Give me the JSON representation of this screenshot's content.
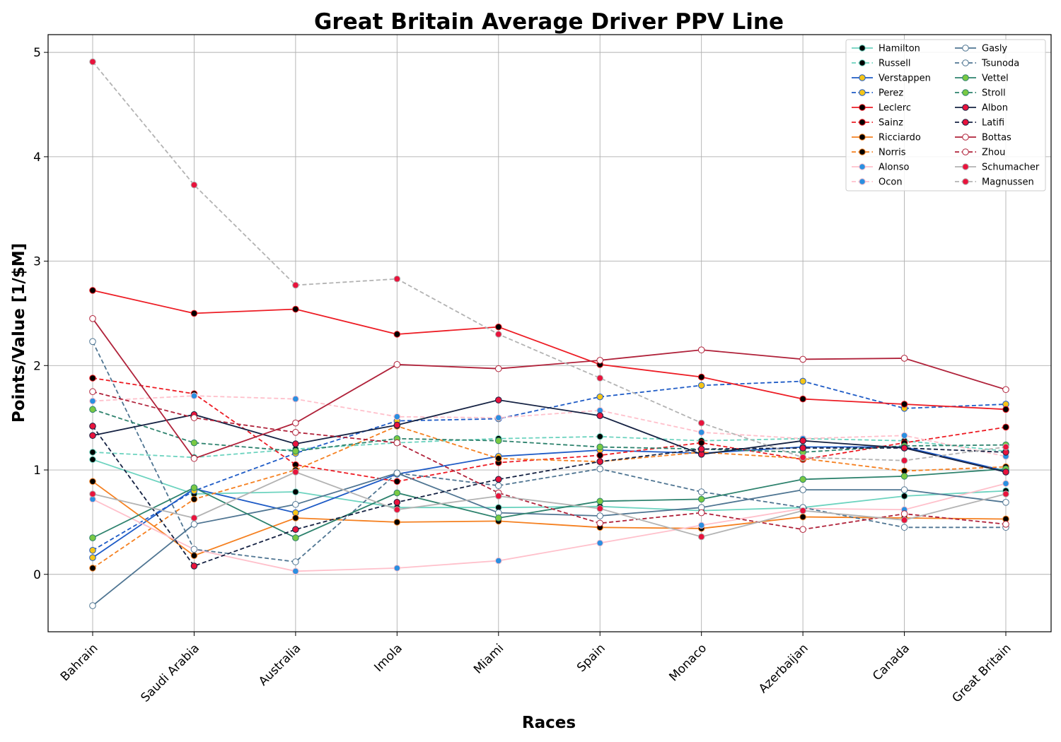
{
  "chart_data": {
    "type": "line",
    "title": "Great Britain Average Driver PPV Line",
    "xlabel": "Races",
    "ylabel": "Points/Value [1/$M]",
    "categories": [
      "Bahrain",
      "Saudi Arabia",
      "Australia",
      "Imola",
      "Miami",
      "Spain",
      "Monaco",
      "Azerbaijan",
      "Canada",
      "Great Britain"
    ],
    "yticks": [
      "0",
      "1",
      "2",
      "3",
      "4",
      "5"
    ],
    "ylim": [
      -0.55,
      5.17
    ],
    "grid": true,
    "legend_position": "top-right",
    "legend_columns": 2,
    "series": [
      {
        "name": "Hamilton",
        "color": "#6cd3bf",
        "line_style": "solid",
        "marker_face": "#000000",
        "values": [
          1.1,
          0.77,
          0.79,
          0.64,
          0.64,
          0.65,
          0.61,
          0.64,
          0.75,
          0.8
        ]
      },
      {
        "name": "Russell",
        "color": "#6cd3bf",
        "line_style": "dashed",
        "marker_face": "#000000",
        "values": [
          1.17,
          1.12,
          1.2,
          1.26,
          1.3,
          1.32,
          1.28,
          1.3,
          1.28,
          1.18
        ]
      },
      {
        "name": "Verstappen",
        "color": "#1e5bc6",
        "line_style": "solid",
        "marker_face": "#f5c518",
        "values": [
          0.16,
          0.82,
          0.59,
          0.96,
          1.13,
          1.19,
          1.16,
          1.22,
          1.22,
          0.99
        ]
      },
      {
        "name": "Perez",
        "color": "#1e5bc6",
        "line_style": "dashed",
        "marker_face": "#f5c518",
        "values": [
          0.23,
          0.8,
          1.16,
          1.47,
          1.49,
          1.7,
          1.81,
          1.85,
          1.59,
          1.63
        ]
      },
      {
        "name": "Leclerc",
        "color": "#ed1c24",
        "line_style": "solid",
        "marker_face": "#000000",
        "values": [
          2.72,
          2.5,
          2.54,
          2.3,
          2.37,
          2.01,
          1.89,
          1.68,
          1.63,
          1.58
        ]
      },
      {
        "name": "Sainz",
        "color": "#ed1c24",
        "line_style": "dashed",
        "marker_face": "#000000",
        "values": [
          1.88,
          1.73,
          1.05,
          0.89,
          1.07,
          1.14,
          1.26,
          1.1,
          1.26,
          1.41
        ]
      },
      {
        "name": "Ricciardo",
        "color": "#f58020",
        "line_style": "solid",
        "marker_face": "#000000",
        "values": [
          0.89,
          0.18,
          0.54,
          0.5,
          0.51,
          0.45,
          0.44,
          0.55,
          0.54,
          0.53
        ]
      },
      {
        "name": "Norris",
        "color": "#f58020",
        "line_style": "dashed",
        "marker_face": "#000000",
        "values": [
          0.06,
          0.72,
          1.0,
          1.42,
          1.11,
          1.08,
          1.17,
          1.11,
          0.99,
          1.03
        ]
      },
      {
        "name": "Alonso",
        "color": "#ffc0cb",
        "line_style": "solid",
        "marker_face": "#2b8fe0",
        "values": [
          0.72,
          0.24,
          0.03,
          0.06,
          0.13,
          0.3,
          0.47,
          0.63,
          0.62,
          0.87
        ]
      },
      {
        "name": "Ocon",
        "color": "#ffc0cb",
        "line_style": "dashed",
        "marker_face": "#2b8fe0",
        "values": [
          1.66,
          1.71,
          1.68,
          1.51,
          1.5,
          1.57,
          1.36,
          1.3,
          1.33,
          1.13
        ]
      },
      {
        "name": "Gasly",
        "color": "#4f7592",
        "line_style": "solid",
        "marker_face": "#ffffff",
        "values": [
          -0.3,
          0.48,
          0.67,
          0.97,
          0.59,
          0.56,
          0.64,
          0.81,
          0.81,
          0.69
        ]
      },
      {
        "name": "Tsunoda",
        "color": "#4f7592",
        "line_style": "dashed",
        "marker_face": "#ffffff",
        "values": [
          2.23,
          0.24,
          0.12,
          0.97,
          0.85,
          1.01,
          0.79,
          0.64,
          0.45,
          0.45
        ]
      },
      {
        "name": "Vettel",
        "color": "#2d826d",
        "line_style": "solid",
        "marker_face": "#7ac943",
        "values": [
          0.35,
          0.83,
          0.35,
          0.78,
          0.54,
          0.7,
          0.72,
          0.91,
          0.94,
          1.01
        ]
      },
      {
        "name": "Stroll",
        "color": "#2d826d",
        "line_style": "dashed",
        "marker_face": "#7ac943",
        "values": [
          1.58,
          1.26,
          1.18,
          1.3,
          1.28,
          1.22,
          1.2,
          1.17,
          1.23,
          1.24
        ]
      },
      {
        "name": "Albon",
        "color": "#152243",
        "line_style": "solid",
        "marker_face": "#e8133c",
        "values": [
          1.33,
          1.53,
          1.25,
          1.43,
          1.67,
          1.52,
          1.15,
          1.28,
          1.21,
          0.98
        ]
      },
      {
        "name": "Latifi",
        "color": "#152243",
        "line_style": "dashed",
        "marker_face": "#e8133c",
        "values": [
          1.42,
          0.08,
          0.43,
          0.69,
          0.91,
          1.08,
          1.2,
          1.21,
          1.21,
          1.17
        ]
      },
      {
        "name": "Bottas",
        "color": "#b0223a",
        "line_style": "solid",
        "marker_face": "#ffffff",
        "values": [
          2.45,
          1.11,
          1.45,
          2.01,
          1.97,
          2.05,
          2.15,
          2.06,
          2.07,
          1.77
        ]
      },
      {
        "name": "Zhou",
        "color": "#b0223a",
        "line_style": "dashed",
        "marker_face": "#ffffff",
        "values": [
          1.75,
          1.5,
          1.36,
          1.26,
          0.78,
          0.49,
          0.59,
          0.43,
          0.58,
          0.48
        ]
      },
      {
        "name": "Schumacher",
        "color": "#b3b3b3",
        "line_style": "solid",
        "marker_face": "#e8133c",
        "values": [
          0.77,
          0.54,
          0.98,
          0.62,
          0.75,
          0.63,
          0.36,
          0.61,
          0.52,
          0.77
        ]
      },
      {
        "name": "Magnussen",
        "color": "#b3b3b3",
        "line_style": "dashed",
        "marker_face": "#e8133c",
        "values": [
          4.91,
          3.73,
          2.77,
          2.83,
          2.3,
          1.88,
          1.45,
          1.12,
          1.09,
          1.22
        ]
      }
    ]
  }
}
